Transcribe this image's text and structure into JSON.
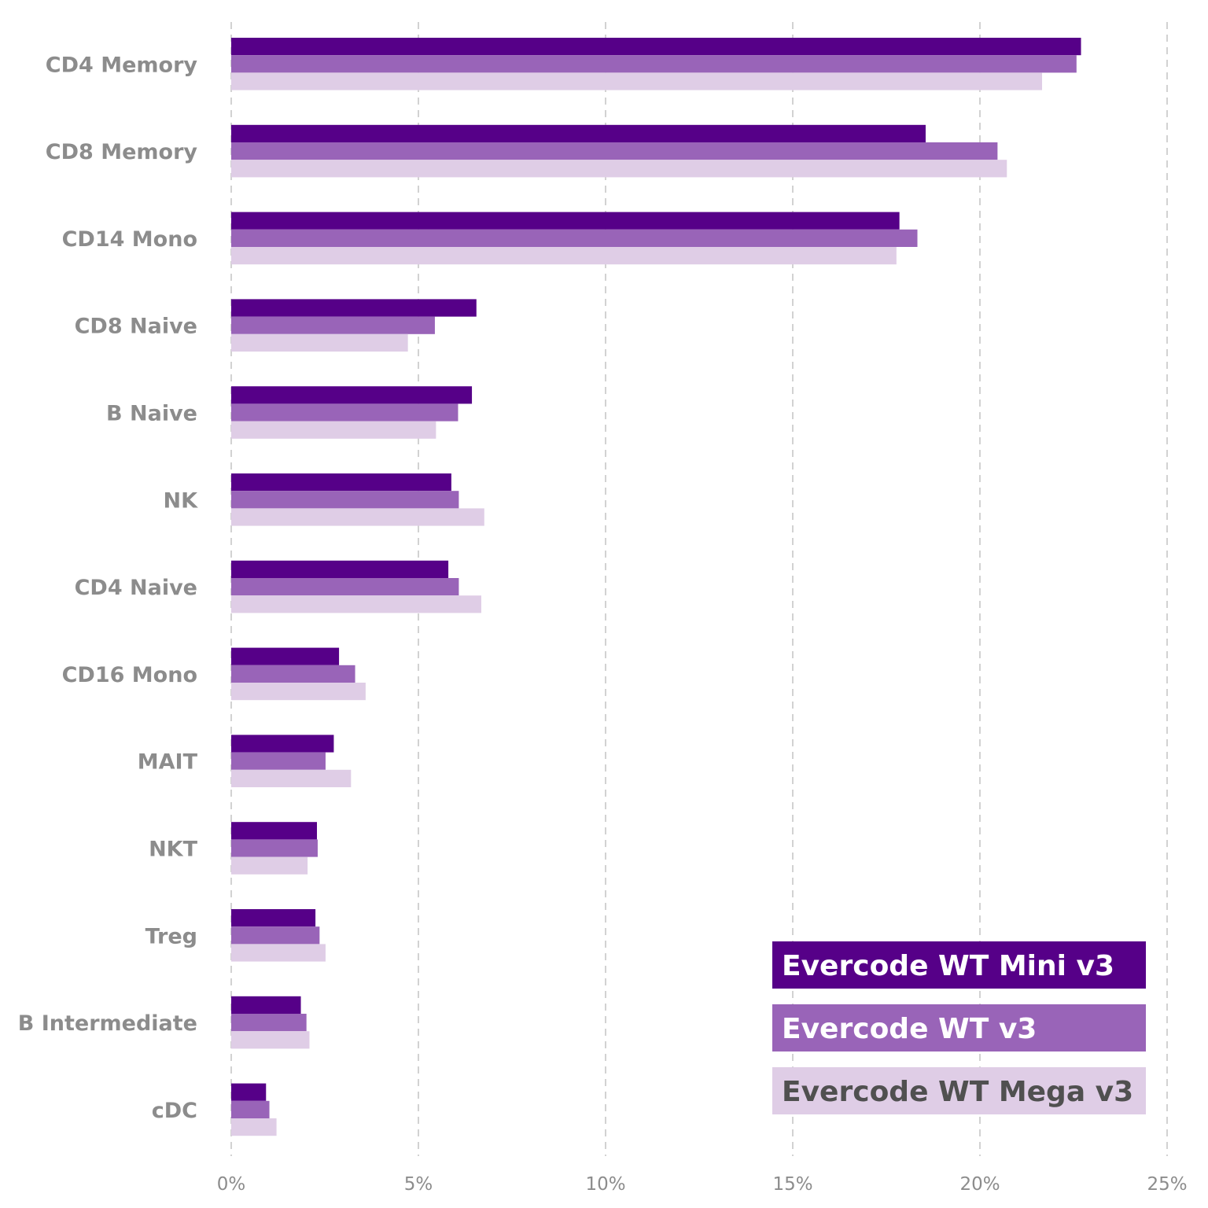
{
  "chart_data": {
    "type": "bar",
    "orientation": "horizontal",
    "title": "",
    "xlabel": "",
    "ylabel": "",
    "xlim": [
      0,
      25
    ],
    "grid": true,
    "legend_position": "bottom-right",
    "x_ticks": [
      0,
      5,
      10,
      15,
      20,
      25
    ],
    "x_tick_labels": [
      "0%",
      "5%",
      "10%",
      "15%",
      "20%",
      "25%"
    ],
    "categories": [
      "CD4 Memory",
      "CD8 Memory",
      "CD14 Mono",
      "CD8 Naive",
      "B Naive",
      "NK",
      "CD4 Naive",
      "CD16 Mono",
      "MAIT",
      "NKT",
      "Treg",
      "B Intermediate",
      "cDC"
    ],
    "series": [
      {
        "name": "Evercode WT Mini v3",
        "color": "#560088",
        "text_color": "#ffffff",
        "values": [
          22.7,
          18.55,
          17.85,
          6.55,
          6.43,
          5.88,
          5.8,
          2.88,
          2.74,
          2.29,
          2.25,
          1.86,
          0.93
        ]
      },
      {
        "name": "Evercode WT v3",
        "color": "#9964b8",
        "text_color": "#ffffff",
        "values": [
          22.58,
          20.47,
          18.33,
          5.44,
          6.06,
          6.08,
          6.08,
          3.31,
          2.52,
          2.31,
          2.36,
          2.01,
          1.02
        ]
      },
      {
        "name": "Evercode WT Mega v3",
        "color": "#dfcde6",
        "text_color": "#505050",
        "values": [
          21.66,
          20.72,
          17.77,
          4.72,
          5.47,
          6.76,
          6.68,
          3.59,
          3.2,
          2.04,
          2.52,
          2.09,
          1.21
        ]
      }
    ]
  }
}
